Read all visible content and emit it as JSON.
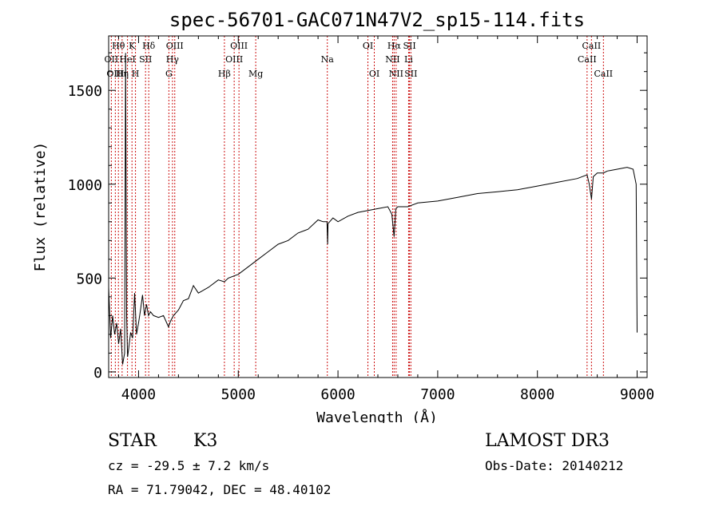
{
  "chart_data": {
    "type": "line",
    "title": "spec-56701-GAC071N47V2_sp15-114.fits",
    "xlabel": "Wavelength (Å)",
    "ylabel": "Flux (relative)",
    "xlim": [
      3700,
      9100
    ],
    "ylim": [
      -30,
      1790
    ],
    "xticks": [
      4000,
      5000,
      6000,
      7000,
      8000,
      9000
    ],
    "yticks": [
      0,
      500,
      1000,
      1500
    ],
    "series": [
      {
        "name": "flux",
        "x": [
          3700,
          3720,
          3740,
          3760,
          3780,
          3800,
          3820,
          3840,
          3860,
          3870,
          3880,
          3890,
          3900,
          3920,
          3940,
          3960,
          3980,
          4000,
          4020,
          4040,
          4060,
          4080,
          4100,
          4120,
          4150,
          4200,
          4250,
          4300,
          4320,
          4350,
          4400,
          4450,
          4500,
          4550,
          4600,
          4700,
          4800,
          4861,
          4900,
          5000,
          5100,
          5200,
          5300,
          5400,
          5500,
          5600,
          5700,
          5800,
          5850,
          5890,
          5896,
          5900,
          5950,
          6000,
          6100,
          6200,
          6300,
          6400,
          6500,
          6540,
          6563,
          6580,
          6600,
          6700,
          6800,
          7000,
          7200,
          7400,
          7600,
          7800,
          8000,
          8200,
          8400,
          8498,
          8520,
          8542,
          8560,
          8600,
          8662,
          8700,
          8800,
          8900,
          8960,
          8990,
          9000
        ],
        "values": [
          450,
          180,
          300,
          200,
          260,
          150,
          230,
          40,
          100,
          1700,
          300,
          80,
          120,
          210,
          180,
          420,
          200,
          260,
          330,
          410,
          300,
          360,
          300,
          320,
          300,
          290,
          300,
          240,
          270,
          300,
          330,
          380,
          390,
          460,
          420,
          450,
          490,
          480,
          500,
          520,
          560,
          600,
          640,
          680,
          700,
          740,
          760,
          810,
          800,
          800,
          680,
          790,
          820,
          800,
          830,
          850,
          860,
          870,
          880,
          840,
          720,
          870,
          880,
          880,
          900,
          910,
          930,
          950,
          960,
          970,
          990,
          1010,
          1030,
          1050,
          1000,
          920,
          1040,
          1060,
          1060,
          1070,
          1080,
          1090,
          1080,
          1000,
          210
        ]
      }
    ],
    "lines": [
      {
        "label": "Hθ",
        "wave": 3798,
        "row": 0
      },
      {
        "label": "OII",
        "wave": 3727,
        "row": 1
      },
      {
        "label": "OIII",
        "wave": 3767,
        "row": 2
      },
      {
        "label": "K",
        "wave": 3934,
        "row": 0
      },
      {
        "label": "HeI",
        "wave": 3889,
        "row": 1
      },
      {
        "label": "Hη",
        "wave": 3835,
        "row": 2
      },
      {
        "label": "Hδ",
        "wave": 4102,
        "row": 0
      },
      {
        "label": "SII",
        "wave": 4070,
        "row": 1
      },
      {
        "label": "H",
        "wave": 3969,
        "row": 2
      },
      {
        "label": "OIII",
        "wave": 4363,
        "row": 0
      },
      {
        "label": "Hγ",
        "wave": 4340,
        "row": 1
      },
      {
        "label": "G",
        "wave": 4304,
        "row": 2
      },
      {
        "label": "OIII",
        "wave": 5007,
        "row": 0
      },
      {
        "label": "OIII",
        "wave": 4959,
        "row": 1
      },
      {
        "label": "Hβ",
        "wave": 4861,
        "row": 2
      },
      {
        "label": "Mg",
        "wave": 5175,
        "row": 2
      },
      {
        "label": "Na",
        "wave": 5893,
        "row": 1
      },
      {
        "label": "OI",
        "wave": 6300,
        "row": 0
      },
      {
        "label": "OI",
        "wave": 6364,
        "row": 2
      },
      {
        "label": "Hα",
        "wave": 6563,
        "row": 0
      },
      {
        "label": "SII",
        "wave": 6717,
        "row": 0
      },
      {
        "label": "NII",
        "wave": 6548,
        "row": 1
      },
      {
        "label": "Li",
        "wave": 6708,
        "row": 1
      },
      {
        "label": "NII",
        "wave": 6583,
        "row": 2
      },
      {
        "label": "SII",
        "wave": 6731,
        "row": 2
      },
      {
        "label": "CaII",
        "wave": 8542,
        "row": 0
      },
      {
        "label": "CaII",
        "wave": 8498,
        "row": 1
      },
      {
        "label": "CaII",
        "wave": 8662,
        "row": 2
      }
    ]
  },
  "info": {
    "object_class": "STAR",
    "subclass": "K3",
    "redshift": "cz = -29.5 ± 7.2 km/s",
    "coords": "RA =  71.79042, DEC =  48.40102",
    "survey": "LAMOST DR3",
    "obs_date": "Obs-Date: 20140212"
  }
}
